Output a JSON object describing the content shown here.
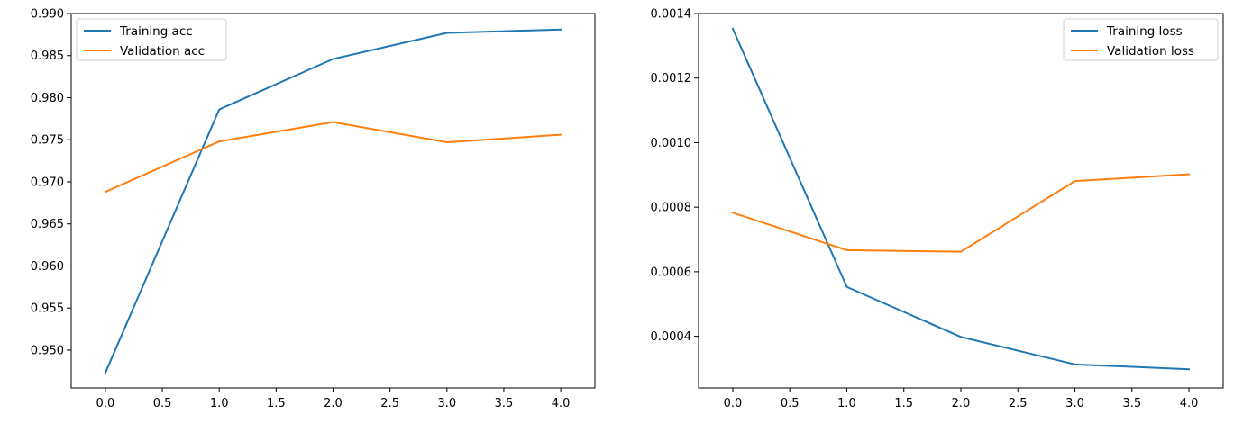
{
  "colors": {
    "training": "#1f77b4",
    "validation": "#ff7f0e",
    "axis": "#000000",
    "background": "#ffffff"
  },
  "chart_data": [
    {
      "type": "line",
      "x": [
        0,
        1,
        2,
        3,
        4
      ],
      "series": [
        {
          "name": "Training acc",
          "values": [
            0.9473,
            0.9786,
            0.9846,
            0.9877,
            0.9881
          ]
        },
        {
          "name": "Validation acc",
          "values": [
            0.9688,
            0.9748,
            0.9771,
            0.9747,
            0.9756
          ]
        }
      ],
      "xlim": [
        -0.3,
        4.3
      ],
      "ylim": [
        0.9455,
        0.99
      ],
      "xticks": [
        0,
        0.5,
        1,
        1.5,
        2,
        2.5,
        3,
        3.5,
        4
      ],
      "xtick_labels": [
        "0.0",
        "0.5",
        "1.0",
        "1.5",
        "2.0",
        "2.5",
        "3.0",
        "3.5",
        "4.0"
      ],
      "yticks": [
        0.95,
        0.955,
        0.96,
        0.965,
        0.97,
        0.975,
        0.98,
        0.985,
        0.99
      ],
      "ytick_labels": [
        "0.950",
        "0.955",
        "0.960",
        "0.965",
        "0.970",
        "0.975",
        "0.980",
        "0.985",
        "0.990"
      ],
      "legend": "top-left",
      "grid": false
    },
    {
      "type": "line",
      "x": [
        0,
        1,
        2,
        3,
        4
      ],
      "series": [
        {
          "name": "Training loss",
          "values": [
            0.001353,
            0.000553,
            0.000398,
            0.000313,
            0.000298
          ]
        },
        {
          "name": "Validation loss",
          "values": [
            0.000783,
            0.000667,
            0.000662,
            0.000881,
            0.000902
          ]
        }
      ],
      "xlim": [
        -0.3,
        4.3
      ],
      "ylim": [
        0.00024,
        0.0014
      ],
      "xticks": [
        0,
        0.5,
        1,
        1.5,
        2,
        2.5,
        3,
        3.5,
        4
      ],
      "xtick_labels": [
        "0.0",
        "0.5",
        "1.0",
        "1.5",
        "2.0",
        "2.5",
        "3.0",
        "3.5",
        "4.0"
      ],
      "yticks": [
        0.0004,
        0.0006,
        0.0008,
        0.001,
        0.0012,
        0.0014
      ],
      "ytick_labels": [
        "0.0004",
        "0.0006",
        "0.0008",
        "0.0010",
        "0.0012",
        "0.0014"
      ],
      "legend": "top-right",
      "grid": false
    }
  ]
}
